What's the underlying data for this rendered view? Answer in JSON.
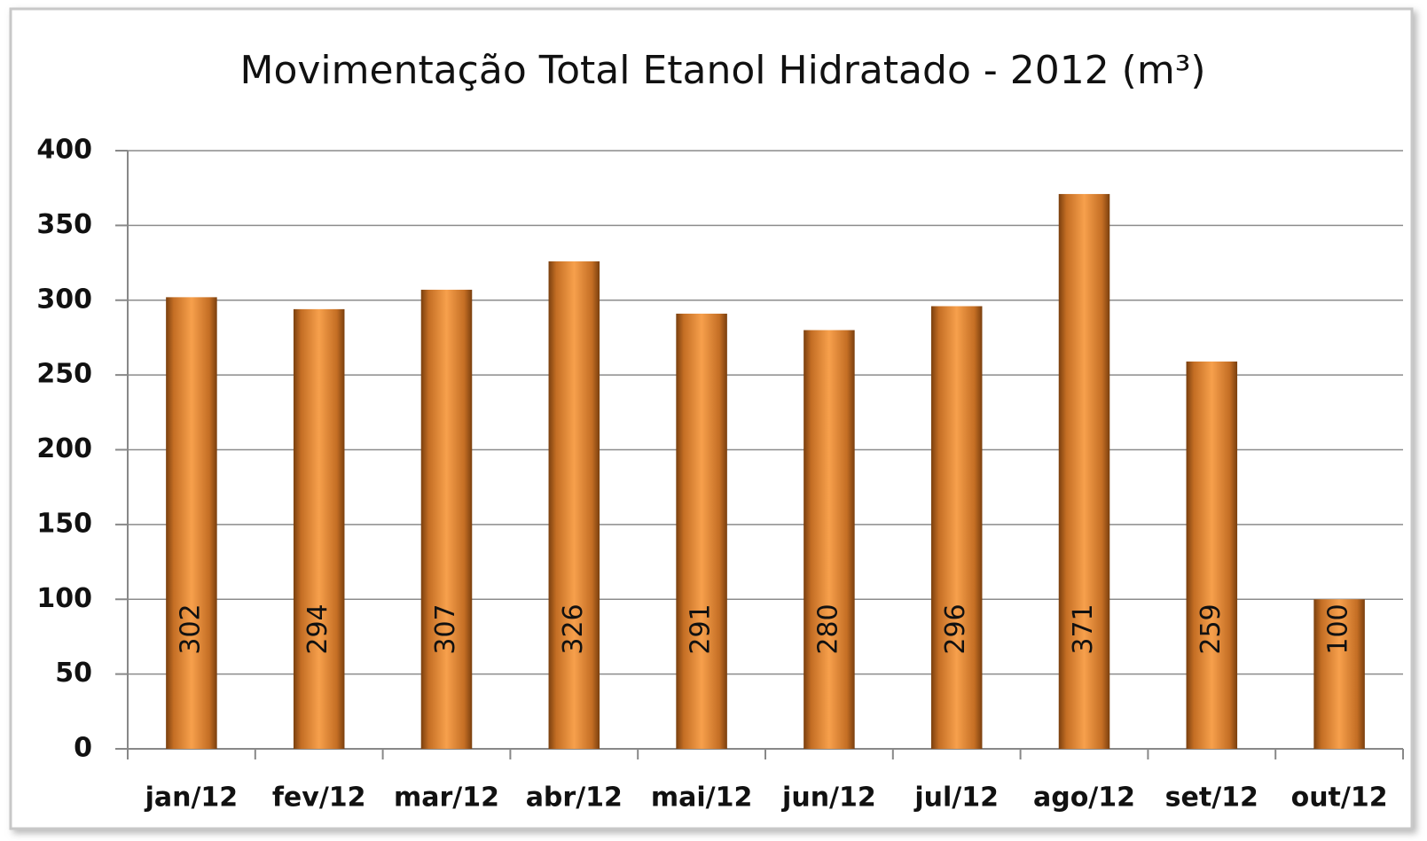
{
  "chart_data": {
    "type": "bar",
    "title": "Movimentação Total Etanol Hidratado - 2012 (m³)",
    "categories": [
      "jan/12",
      "fev/12",
      "mar/12",
      "abr/12",
      "mai/12",
      "jun/12",
      "jul/12",
      "ago/12",
      "set/12",
      "out/12"
    ],
    "values": [
      302,
      294,
      307,
      326,
      291,
      280,
      296,
      371,
      259,
      100
    ],
    "color": "#f7a04c",
    "ylim": [
      0,
      400
    ],
    "yticks": [
      0,
      50,
      100,
      150,
      200,
      250,
      300,
      350,
      400
    ],
    "grid": true
  }
}
